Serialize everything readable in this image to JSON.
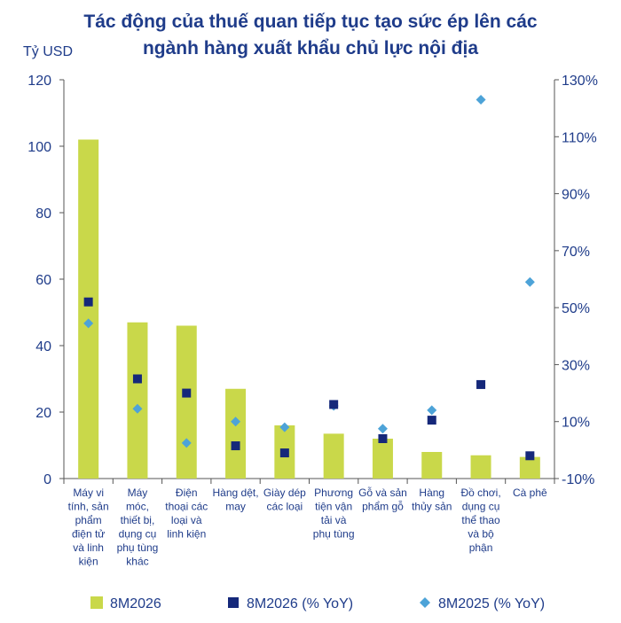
{
  "chart_data": {
    "type": "bar",
    "title_lines": [
      "Tác động của thuế quan tiếp tục tạo sức ép lên các",
      "ngành hàng xuất khẩu chủ lực nội địa"
    ],
    "ylabel": "Tỷ USD",
    "ylim": [
      0,
      120
    ],
    "y_ticks": [
      "0",
      "20",
      "40",
      "60",
      "80",
      "100",
      "120"
    ],
    "y2lim": [
      -10,
      130
    ],
    "y2_ticks": [
      "-10%",
      "10%",
      "30%",
      "50%",
      "70%",
      "90%",
      "110%",
      "130%"
    ],
    "categories": [
      [
        "Máy vi",
        "tính, sản",
        "phẩm",
        "điện tử",
        "và linh",
        "kiện"
      ],
      [
        "Máy",
        "móc,",
        "thiết bị,",
        "dụng cụ",
        "phụ tùng",
        "khác"
      ],
      [
        "Điện",
        "thoại các",
        "loại và",
        "linh kiện"
      ],
      [
        "Hàng dệt,",
        "may"
      ],
      [
        "Giày dép",
        "các loại"
      ],
      [
        "Phương",
        "tiện vận",
        "tải và",
        "phụ tùng"
      ],
      [
        "Gỗ và sản",
        "phẩm gỗ"
      ],
      [
        "Hàng",
        "thủy sản"
      ],
      [
        "Đồ chơi,",
        "dụng cụ",
        "thể thao",
        "và bộ",
        "phận"
      ],
      [
        "Cà phê"
      ]
    ],
    "series": [
      {
        "name": "8M2026",
        "kind": "bar",
        "axis": "left",
        "color": "#c9d84a",
        "values": [
          102,
          47,
          46,
          27,
          16,
          13.5,
          12,
          8,
          7,
          6.5
        ]
      },
      {
        "name": "8M2026 (% YoY)",
        "kind": "square",
        "axis": "right",
        "color": "#15287a",
        "values": [
          52,
          25,
          20,
          1.5,
          -1,
          16,
          4,
          10.5,
          23,
          -2
        ]
      },
      {
        "name": "8M2025 (% YoY)",
        "kind": "diamond",
        "axis": "right",
        "color": "#4da3d8",
        "values": [
          44.5,
          14.5,
          2.5,
          10,
          8,
          15.5,
          7.5,
          14,
          123,
          59
        ]
      }
    ],
    "grid": false,
    "legend_position": "bottom"
  }
}
